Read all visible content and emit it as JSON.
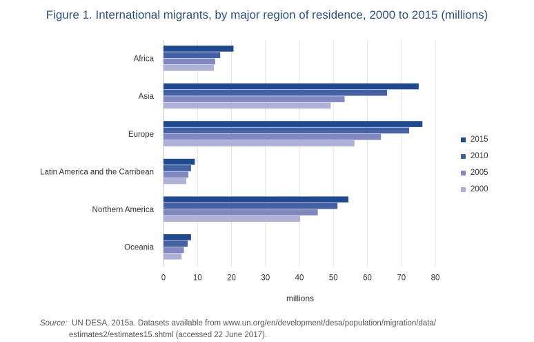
{
  "chart_data": {
    "type": "bar",
    "orientation": "horizontal",
    "title": "Figure 1. International migrants, by major region of residence, 2000 to 2015 (millions)",
    "categories": [
      "Africa",
      "Asia",
      "Europe",
      "Latin America and the Carribean",
      "Northern America",
      "Oceania"
    ],
    "series": [
      {
        "name": "2015",
        "color": "#1f4a8f",
        "values": [
          20.6,
          75.1,
          76.2,
          9.2,
          54.4,
          8.1
        ]
      },
      {
        "name": "2010",
        "color": "#4462a3",
        "values": [
          16.7,
          65.8,
          72.3,
          8.1,
          51.2,
          7.1
        ]
      },
      {
        "name": "2005",
        "color": "#8088bf",
        "values": [
          15.2,
          53.3,
          64.0,
          7.3,
          45.4,
          6.0
        ]
      },
      {
        "name": "2000",
        "color": "#adb1d8",
        "values": [
          14.8,
          49.2,
          56.2,
          6.7,
          40.2,
          5.3
        ]
      }
    ],
    "xlabel": "millions",
    "xlim": [
      0,
      80
    ],
    "xticks": [
      "0",
      "10",
      "20",
      "30",
      "40",
      "50",
      "60",
      "70",
      "80"
    ],
    "grid": true,
    "legend_position": "right"
  },
  "source": {
    "label": "Source:",
    "text": "UN DESA, 2015a. Datasets available from www.un.org/en/development/desa/population/migration/data/",
    "text2": "estimates2/estimates15.shtml (accessed 22 June 2017)."
  }
}
